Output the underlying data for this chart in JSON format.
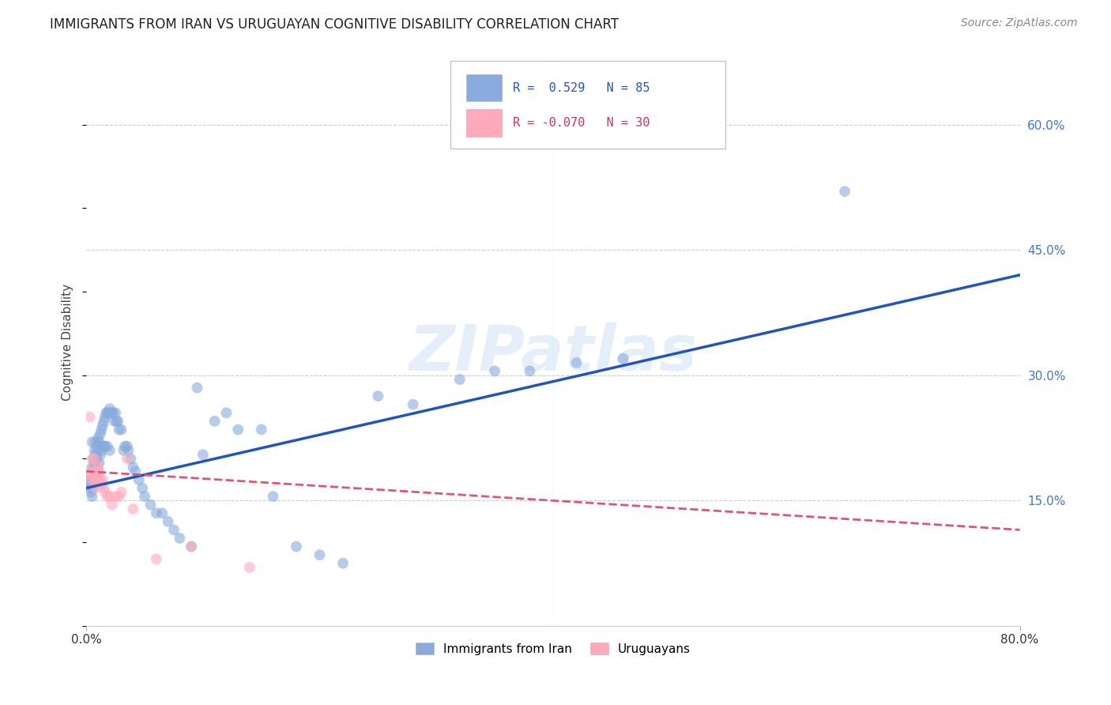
{
  "title": "IMMIGRANTS FROM IRAN VS URUGUAYAN COGNITIVE DISABILITY CORRELATION CHART",
  "source": "Source: ZipAtlas.com",
  "ylabel": "Cognitive Disability",
  "xlim": [
    0.0,
    0.8
  ],
  "ylim": [
    0.0,
    0.68
  ],
  "yticks_right": [
    0.15,
    0.3,
    0.45,
    0.6
  ],
  "ytick_labels_right": [
    "15.0%",
    "30.0%",
    "45.0%",
    "60.0%"
  ],
  "grid_color": "#cccccc",
  "watermark": "ZIPatlas",
  "blue_color": "#88aadd",
  "pink_color": "#ffaabb",
  "blue_line_color": "#2255bb",
  "pink_line_color": "#dd5577",
  "scatter_alpha": 0.6,
  "marker_size": 100,
  "blue_scatter_x": [
    0.002,
    0.003,
    0.003,
    0.004,
    0.004,
    0.005,
    0.005,
    0.005,
    0.006,
    0.006,
    0.006,
    0.007,
    0.007,
    0.007,
    0.008,
    0.008,
    0.008,
    0.009,
    0.009,
    0.009,
    0.01,
    0.01,
    0.01,
    0.011,
    0.011,
    0.012,
    0.012,
    0.013,
    0.013,
    0.014,
    0.014,
    0.015,
    0.015,
    0.016,
    0.016,
    0.017,
    0.018,
    0.018,
    0.019,
    0.02,
    0.02,
    0.021,
    0.022,
    0.023,
    0.024,
    0.025,
    0.026,
    0.027,
    0.028,
    0.03,
    0.032,
    0.033,
    0.035,
    0.036,
    0.038,
    0.04,
    0.042,
    0.045,
    0.048,
    0.05,
    0.055,
    0.06,
    0.065,
    0.07,
    0.075,
    0.08,
    0.09,
    0.095,
    0.1,
    0.11,
    0.12,
    0.13,
    0.15,
    0.16,
    0.18,
    0.2,
    0.22,
    0.25,
    0.28,
    0.32,
    0.35,
    0.38,
    0.42,
    0.46,
    0.65
  ],
  "blue_scatter_y": [
    0.175,
    0.18,
    0.165,
    0.17,
    0.16,
    0.22,
    0.19,
    0.155,
    0.2,
    0.185,
    0.165,
    0.21,
    0.195,
    0.175,
    0.22,
    0.205,
    0.185,
    0.215,
    0.2,
    0.175,
    0.225,
    0.21,
    0.185,
    0.22,
    0.195,
    0.23,
    0.205,
    0.235,
    0.21,
    0.24,
    0.215,
    0.245,
    0.215,
    0.25,
    0.215,
    0.255,
    0.255,
    0.215,
    0.255,
    0.26,
    0.21,
    0.255,
    0.255,
    0.255,
    0.245,
    0.255,
    0.245,
    0.245,
    0.235,
    0.235,
    0.21,
    0.215,
    0.215,
    0.21,
    0.2,
    0.19,
    0.185,
    0.175,
    0.165,
    0.155,
    0.145,
    0.135,
    0.135,
    0.125,
    0.115,
    0.105,
    0.095,
    0.285,
    0.205,
    0.245,
    0.255,
    0.235,
    0.235,
    0.155,
    0.095,
    0.085,
    0.075,
    0.275,
    0.265,
    0.295,
    0.305,
    0.305,
    0.315,
    0.32,
    0.52
  ],
  "pink_scatter_x": [
    0.002,
    0.003,
    0.004,
    0.005,
    0.005,
    0.006,
    0.007,
    0.007,
    0.008,
    0.008,
    0.009,
    0.01,
    0.01,
    0.011,
    0.012,
    0.013,
    0.014,
    0.015,
    0.016,
    0.018,
    0.02,
    0.022,
    0.025,
    0.028,
    0.03,
    0.035,
    0.04,
    0.06,
    0.09,
    0.14
  ],
  "pink_scatter_y": [
    0.185,
    0.25,
    0.18,
    0.2,
    0.175,
    0.185,
    0.2,
    0.175,
    0.185,
    0.165,
    0.185,
    0.19,
    0.175,
    0.185,
    0.175,
    0.17,
    0.175,
    0.165,
    0.16,
    0.155,
    0.155,
    0.145,
    0.155,
    0.155,
    0.16,
    0.2,
    0.14,
    0.08,
    0.095,
    0.07
  ],
  "blue_regline_x": [
    0.0,
    0.8
  ],
  "blue_regline_y_start": 0.165,
  "blue_regline_y_end": 0.42,
  "pink_regline_x": [
    0.0,
    0.8
  ],
  "pink_regline_y_start": 0.185,
  "pink_regline_y_end": 0.115,
  "background_color": "#ffffff"
}
